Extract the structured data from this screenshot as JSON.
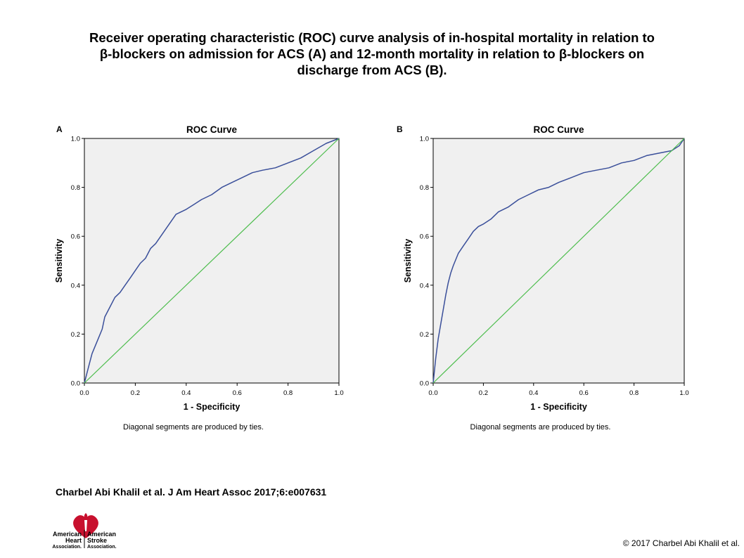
{
  "figure": {
    "title_lines": [
      "Receiver operating characteristic (ROC) curve analysis of in-hospital mortality in relation to",
      "β-blockers on admission for ACS (A) and 12-month mortality in relation to β-blockers on",
      "discharge from ACS (B)."
    ],
    "citation": "Charbel Abi Khalil et al. J Am Heart Assoc 2017;6:e007631",
    "copyright": "© 2017 Charbel  Abi Khalil et al.",
    "logo": {
      "left_lines": [
        "American",
        "Heart",
        "Association."
      ],
      "right_lines": [
        "American",
        "Stroke",
        "Association."
      ]
    }
  },
  "colors": {
    "plot_background": "#f0f0f0",
    "roc_curve": "#3a4f9a",
    "reference_line": "#4dbd4d"
  },
  "chart_data": [
    {
      "panel": "A",
      "type": "line",
      "title": "ROC Curve",
      "xlabel": "1 - Specificity",
      "ylabel": "Sensitivity",
      "footnote": "Diagonal segments are produced by ties.",
      "xlim": [
        0,
        1
      ],
      "ylim": [
        0,
        1
      ],
      "xticks": [
        "0.0",
        "0.2",
        "0.4",
        "0.6",
        "0.8",
        "1.0"
      ],
      "yticks": [
        "0.0",
        "0.2",
        "0.4",
        "0.6",
        "0.8",
        "1.0"
      ],
      "grid": false,
      "series": [
        {
          "role": "roc",
          "x": [
            0,
            0.01,
            0.02,
            0.03,
            0.05,
            0.07,
            0.08,
            0.1,
            0.12,
            0.14,
            0.16,
            0.18,
            0.2,
            0.22,
            0.24,
            0.26,
            0.28,
            0.3,
            0.32,
            0.34,
            0.36,
            0.38,
            0.4,
            0.43,
            0.46,
            0.5,
            0.54,
            0.58,
            0.62,
            0.66,
            0.7,
            0.75,
            0.8,
            0.85,
            0.9,
            0.95,
            1.0
          ],
          "y": [
            0,
            0.04,
            0.08,
            0.12,
            0.17,
            0.22,
            0.27,
            0.31,
            0.35,
            0.37,
            0.4,
            0.43,
            0.46,
            0.49,
            0.51,
            0.55,
            0.57,
            0.6,
            0.63,
            0.66,
            0.69,
            0.7,
            0.71,
            0.73,
            0.75,
            0.77,
            0.8,
            0.82,
            0.84,
            0.86,
            0.87,
            0.88,
            0.9,
            0.92,
            0.95,
            0.98,
            1.0
          ]
        },
        {
          "role": "reference",
          "x": [
            0,
            1
          ],
          "y": [
            0,
            1
          ]
        }
      ]
    },
    {
      "panel": "B",
      "type": "line",
      "title": "ROC Curve",
      "xlabel": "1 - Specificity",
      "ylabel": "Sensitivity",
      "footnote": "Diagonal segments are produced by ties.",
      "xlim": [
        0,
        1
      ],
      "ylim": [
        0,
        1
      ],
      "xticks": [
        "0.0",
        "0.2",
        "0.4",
        "0.6",
        "0.8",
        "1.0"
      ],
      "yticks": [
        "0.0",
        "0.2",
        "0.4",
        "0.6",
        "0.8",
        "1.0"
      ],
      "grid": false,
      "series": [
        {
          "role": "roc",
          "x": [
            0,
            0.005,
            0.01,
            0.02,
            0.03,
            0.04,
            0.05,
            0.06,
            0.07,
            0.08,
            0.1,
            0.12,
            0.14,
            0.16,
            0.18,
            0.2,
            0.23,
            0.26,
            0.3,
            0.34,
            0.38,
            0.42,
            0.46,
            0.5,
            0.55,
            0.6,
            0.65,
            0.7,
            0.75,
            0.8,
            0.85,
            0.9,
            0.95,
            0.98,
            1.0
          ],
          "y": [
            0,
            0.05,
            0.1,
            0.18,
            0.24,
            0.3,
            0.36,
            0.41,
            0.45,
            0.48,
            0.53,
            0.56,
            0.59,
            0.62,
            0.64,
            0.65,
            0.67,
            0.7,
            0.72,
            0.75,
            0.77,
            0.79,
            0.8,
            0.82,
            0.84,
            0.86,
            0.87,
            0.88,
            0.9,
            0.91,
            0.93,
            0.94,
            0.95,
            0.97,
            1.0
          ]
        },
        {
          "role": "reference",
          "x": [
            0,
            1
          ],
          "y": [
            0,
            1
          ]
        }
      ]
    }
  ]
}
